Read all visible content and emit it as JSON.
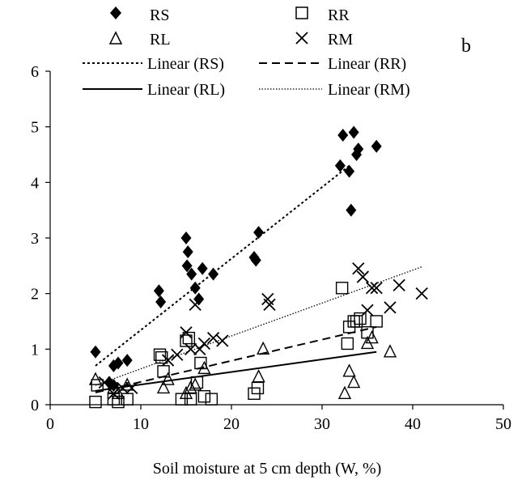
{
  "panel_label": "b",
  "chart_data": {
    "type": "scatter",
    "xlabel": "Soil moisture at 5 cm depth (W, %)",
    "ylabel": "",
    "xlim": [
      0,
      50
    ],
    "ylim": [
      0,
      6
    ],
    "x_ticks": [
      0,
      10,
      20,
      30,
      40,
      50
    ],
    "y_ticks": [
      0,
      1,
      2,
      3,
      4,
      5,
      6
    ],
    "x_tick_labels": [
      "0",
      "10",
      "20",
      "30",
      "40",
      "50"
    ],
    "y_tick_labels": [
      "0",
      "1",
      "2",
      "3",
      "4",
      "5",
      "6"
    ],
    "grid": false,
    "legend_position": "top",
    "series": [
      {
        "name": "RS",
        "marker": "diamond",
        "points": [
          [
            5,
            0.95
          ],
          [
            6.5,
            0.4
          ],
          [
            7,
            0.7
          ],
          [
            7.5,
            0.75
          ],
          [
            8.5,
            0.8
          ],
          [
            7,
            0.35
          ],
          [
            12,
            2.05
          ],
          [
            12.2,
            1.85
          ],
          [
            15,
            3.0
          ],
          [
            15.2,
            2.75
          ],
          [
            15.1,
            2.5
          ],
          [
            15.6,
            2.35
          ],
          [
            16,
            2.1
          ],
          [
            16.4,
            1.9
          ],
          [
            16.8,
            2.45
          ],
          [
            18,
            2.35
          ],
          [
            22.5,
            2.65
          ],
          [
            22.7,
            2.6
          ],
          [
            23,
            3.1
          ],
          [
            32,
            4.3
          ],
          [
            32.3,
            4.85
          ],
          [
            33,
            4.2
          ],
          [
            33.2,
            3.5
          ],
          [
            33.5,
            4.9
          ],
          [
            33.8,
            4.5
          ],
          [
            34,
            4.6
          ],
          [
            36,
            4.65
          ]
        ]
      },
      {
        "name": "RR",
        "marker": "square",
        "points": [
          [
            5,
            0.05
          ],
          [
            5.2,
            0.35
          ],
          [
            7,
            0.1
          ],
          [
            7.5,
            0.05
          ],
          [
            8.5,
            0.1
          ],
          [
            12.1,
            0.9
          ],
          [
            12.3,
            0.85
          ],
          [
            12.5,
            0.6
          ],
          [
            14.5,
            0.1
          ],
          [
            15,
            1.15
          ],
          [
            15.3,
            1.2
          ],
          [
            15.5,
            0.1
          ],
          [
            16.2,
            0.4
          ],
          [
            16.6,
            0.75
          ],
          [
            17,
            0.15
          ],
          [
            17.8,
            0.1
          ],
          [
            22.5,
            0.2
          ],
          [
            22.9,
            0.3
          ],
          [
            32.2,
            2.1
          ],
          [
            32.8,
            1.1
          ],
          [
            33,
            1.4
          ],
          [
            33.5,
            1.5
          ],
          [
            33.8,
            1.5
          ],
          [
            34.2,
            1.55
          ],
          [
            35,
            1.3
          ],
          [
            36,
            1.5
          ]
        ]
      },
      {
        "name": "RL",
        "marker": "triangle",
        "points": [
          [
            5,
            0.45
          ],
          [
            7,
            0.3
          ],
          [
            7.5,
            0.2
          ],
          [
            8.5,
            0.35
          ],
          [
            12.5,
            0.3
          ],
          [
            13,
            0.45
          ],
          [
            15,
            0.2
          ],
          [
            15.5,
            0.3
          ],
          [
            16,
            0.35
          ],
          [
            17,
            0.65
          ],
          [
            23,
            0.5
          ],
          [
            23.5,
            1.0
          ],
          [
            32.5,
            0.2
          ],
          [
            33,
            0.6
          ],
          [
            33.5,
            0.4
          ],
          [
            35,
            1.1
          ],
          [
            35.5,
            1.2
          ],
          [
            37.5,
            0.95
          ]
        ]
      },
      {
        "name": "RM",
        "marker": "cross",
        "points": [
          [
            6,
            0.4
          ],
          [
            7,
            0.2
          ],
          [
            8,
            0.3
          ],
          [
            9,
            0.3
          ],
          [
            13,
            0.8
          ],
          [
            14,
            0.9
          ],
          [
            15,
            1.3
          ],
          [
            15.5,
            1.0
          ],
          [
            16,
            1.8
          ],
          [
            16.5,
            1.0
          ],
          [
            17,
            1.1
          ],
          [
            18,
            1.2
          ],
          [
            19,
            1.15
          ],
          [
            24,
            1.9
          ],
          [
            24.2,
            1.8
          ],
          [
            34,
            2.45
          ],
          [
            34.5,
            2.3
          ],
          [
            35,
            1.7
          ],
          [
            35.5,
            2.1
          ],
          [
            36,
            2.1
          ],
          [
            37.5,
            1.75
          ],
          [
            38.5,
            2.15
          ],
          [
            41,
            2.0
          ]
        ]
      }
    ],
    "trendlines": [
      {
        "name": "Linear (RS)",
        "series": "RS",
        "style": "short-dash",
        "x": [
          5,
          33
        ],
        "y": [
          0.7,
          4.3
        ]
      },
      {
        "name": "Linear (RR)",
        "series": "RR",
        "style": "long-dash",
        "x": [
          5,
          36
        ],
        "y": [
          0.22,
          1.4
        ]
      },
      {
        "name": "Linear (RL)",
        "series": "RL",
        "style": "solid",
        "x": [
          5,
          36
        ],
        "y": [
          0.25,
          0.95
        ]
      },
      {
        "name": "Linear (RM)",
        "series": "RM",
        "style": "dotted",
        "x": [
          5,
          41
        ],
        "y": [
          0.35,
          2.48
        ]
      }
    ]
  }
}
